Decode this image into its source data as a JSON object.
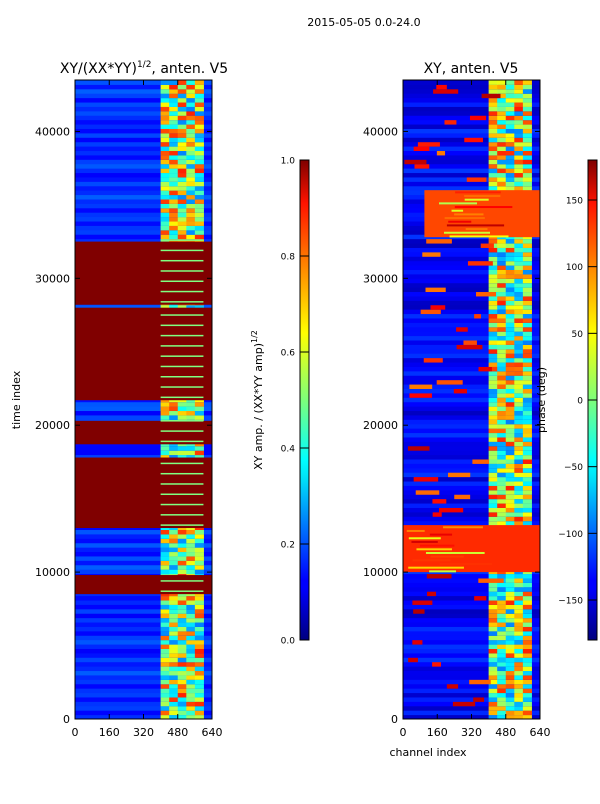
{
  "suptitle": "2015-05-05 0.0-24.0",
  "chart_data": [
    {
      "type": "heatmap",
      "title_main": "XY/(XX*YY)",
      "title_exp": "1/2",
      "title_rest": ", anten. V5",
      "xlabel": "",
      "ylabel": "time index",
      "xlim": [
        0,
        640
      ],
      "ylim": [
        0,
        43500
      ],
      "x_ticks": [
        0,
        160,
        320,
        480,
        640
      ],
      "y_ticks": [
        0,
        10000,
        20000,
        30000,
        40000
      ],
      "colormap": "jet",
      "colorbar": {
        "label_main": "XY amp. / (XX*YY amp)",
        "label_exp": "1/2",
        "vmin": 0.0,
        "vmax": 1.0,
        "ticks": [
          "0.0",
          "0.2",
          "0.4",
          "0.6",
          "0.8",
          "1.0"
        ],
        "tick_values": [
          0.0,
          0.2,
          0.4,
          0.6,
          0.8,
          1.0
        ]
      },
      "saturated_bands": [
        {
          "y0": 8500,
          "y1": 9800,
          "value": 1.0
        },
        {
          "y0": 13000,
          "y1": 17800,
          "value": 1.0
        },
        {
          "y0": 18700,
          "y1": 20300,
          "value": 1.0
        },
        {
          "y0": 21700,
          "y1": 28000,
          "value": 1.0
        },
        {
          "y0": 28200,
          "y1": 32500,
          "value": 1.0
        }
      ],
      "active_channel_range": [
        400,
        600
      ]
    },
    {
      "type": "heatmap",
      "title": "XY, anten. V5",
      "xlabel": "channel index",
      "ylabel": "",
      "xlim": [
        0,
        640
      ],
      "ylim": [
        0,
        43500
      ],
      "x_ticks": [
        0,
        160,
        320,
        480,
        640
      ],
      "y_ticks": [
        0,
        10000,
        20000,
        30000,
        40000
      ],
      "colormap": "jet",
      "colorbar": {
        "label": "phase (deg)",
        "vmin": -180,
        "vmax": 180,
        "ticks": [
          "−150",
          "−100",
          "−50",
          "0",
          "50",
          "100",
          "150"
        ],
        "tick_values": [
          -150,
          -100,
          -50,
          0,
          50,
          100,
          150
        ]
      },
      "warm_regions": [
        {
          "y0": 10000,
          "y1": 13200,
          "x0": 0,
          "x1": 640,
          "value": 120
        },
        {
          "y0": 32800,
          "y1": 36000,
          "x0": 100,
          "x1": 640,
          "value": 110
        }
      ],
      "active_channel_range": [
        400,
        600
      ]
    }
  ]
}
